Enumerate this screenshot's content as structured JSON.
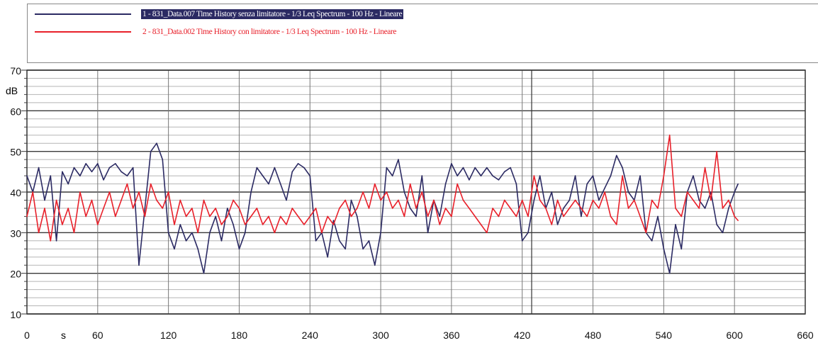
{
  "legend": {
    "items": [
      {
        "label": "1 - 831_Data.007 Time History senza limitatore - 1/3 Leq Spectrum - 100 Hz - Lineare",
        "color": "#2b2a63",
        "highlighted": true
      },
      {
        "label": "2 - 831_Data.002 Time History con limitatore - 1/3 Leq Spectrum - 100 Hz - Lineare",
        "color": "#e8202a",
        "highlighted": false
      }
    ]
  },
  "chart_data": {
    "type": "line",
    "title": "",
    "xlabel": "s",
    "ylabel": "dB",
    "xlim": [
      0,
      660
    ],
    "ylim": [
      10,
      70
    ],
    "x_ticks": [
      "0",
      "60",
      "120",
      "180",
      "240",
      "300",
      "360",
      "420",
      "480",
      "540",
      "600",
      "660"
    ],
    "y_ticks": [
      "10",
      "20",
      "30",
      "40",
      "50",
      "60",
      "70"
    ],
    "grid": true,
    "legend_position": "top",
    "cursor_x": 428,
    "series": [
      {
        "name": "1 - 831_Data.007 Time History senza limitatore - 1/3 Leq Spectrum - 100 Hz - Lineare",
        "color": "#2b2a63",
        "x": [
          0,
          5,
          10,
          15,
          20,
          25,
          30,
          35,
          40,
          45,
          50,
          55,
          60,
          65,
          70,
          75,
          80,
          85,
          90,
          95,
          100,
          105,
          110,
          115,
          120,
          125,
          130,
          135,
          140,
          145,
          150,
          155,
          160,
          165,
          170,
          175,
          180,
          185,
          190,
          195,
          200,
          205,
          210,
          215,
          220,
          225,
          230,
          235,
          240,
          245,
          250,
          255,
          260,
          265,
          270,
          275,
          280,
          285,
          290,
          295,
          300,
          305,
          310,
          315,
          320,
          325,
          330,
          335,
          340,
          345,
          350,
          355,
          360,
          365,
          370,
          375,
          380,
          385,
          390,
          395,
          400,
          405,
          410,
          415,
          420,
          425,
          430,
          435,
          440,
          445,
          450,
          455,
          460,
          465,
          470,
          475,
          480,
          485,
          490,
          495,
          500,
          505,
          510,
          515,
          520,
          525,
          530,
          535,
          540,
          545,
          550,
          555,
          560,
          565,
          570,
          575,
          580,
          585,
          590,
          595,
          600,
          603
        ],
        "y": [
          44,
          40,
          46,
          38,
          44,
          28,
          45,
          42,
          46,
          44,
          47,
          45,
          47,
          43,
          46,
          47,
          45,
          44,
          46,
          22,
          36,
          50,
          52,
          48,
          30,
          26,
          32,
          28,
          30,
          26,
          20,
          30,
          34,
          28,
          36,
          32,
          26,
          30,
          40,
          46,
          44,
          42,
          46,
          42,
          38,
          45,
          47,
          46,
          44,
          28,
          30,
          24,
          33,
          28,
          26,
          38,
          34,
          26,
          28,
          22,
          30,
          46,
          44,
          48,
          40,
          36,
          34,
          44,
          30,
          38,
          34,
          42,
          47,
          44,
          46,
          43,
          46,
          44,
          46,
          44,
          43,
          45,
          46,
          42,
          28,
          30,
          38,
          44,
          36,
          40,
          32,
          36,
          38,
          44,
          34,
          42,
          44,
          38,
          41,
          44,
          49,
          46,
          40,
          38,
          44,
          30,
          28,
          34,
          26,
          20,
          32,
          26,
          40,
          44,
          38,
          36,
          40,
          32,
          30,
          36,
          40,
          42
        ]
      },
      {
        "name": "2 - 831_Data.002 Time History con limitatore - 1/3 Leq Spectrum - 100 Hz - Lineare",
        "color": "#e8202a",
        "x": [
          0,
          5,
          10,
          15,
          20,
          25,
          30,
          35,
          40,
          45,
          50,
          55,
          60,
          65,
          70,
          75,
          80,
          85,
          90,
          95,
          100,
          105,
          110,
          115,
          120,
          125,
          130,
          135,
          140,
          145,
          150,
          155,
          160,
          165,
          170,
          175,
          180,
          185,
          190,
          195,
          200,
          205,
          210,
          215,
          220,
          225,
          230,
          235,
          240,
          245,
          250,
          255,
          260,
          265,
          270,
          275,
          280,
          285,
          290,
          295,
          300,
          305,
          310,
          315,
          320,
          325,
          330,
          335,
          340,
          345,
          350,
          355,
          360,
          365,
          370,
          375,
          380,
          385,
          390,
          395,
          400,
          405,
          410,
          415,
          420,
          425,
          430,
          435,
          440,
          445,
          450,
          455,
          460,
          465,
          470,
          475,
          480,
          485,
          490,
          495,
          500,
          505,
          510,
          515,
          520,
          525,
          530,
          535,
          540,
          545,
          550,
          555,
          560,
          565,
          570,
          575,
          580,
          585,
          590,
          595,
          600,
          603
        ],
        "y": [
          34,
          40,
          30,
          36,
          28,
          38,
          32,
          36,
          30,
          40,
          34,
          38,
          32,
          36,
          40,
          34,
          38,
          42,
          36,
          40,
          34,
          42,
          38,
          36,
          40,
          32,
          38,
          34,
          36,
          30,
          38,
          34,
          36,
          32,
          34,
          38,
          36,
          32,
          34,
          36,
          32,
          34,
          30,
          34,
          32,
          36,
          34,
          32,
          34,
          36,
          30,
          34,
          32,
          36,
          38,
          34,
          36,
          40,
          36,
          42,
          38,
          40,
          36,
          38,
          34,
          42,
          36,
          40,
          34,
          38,
          32,
          36,
          34,
          42,
          38,
          36,
          34,
          32,
          30,
          36,
          34,
          38,
          36,
          34,
          38,
          34,
          44,
          38,
          36,
          32,
          38,
          34,
          36,
          38,
          36,
          34,
          38,
          36,
          40,
          34,
          32,
          44,
          36,
          38,
          34,
          30,
          38,
          36,
          44,
          54,
          36,
          34,
          40,
          38,
          36,
          46,
          38,
          50,
          36,
          38,
          34,
          33
        ]
      }
    ]
  }
}
